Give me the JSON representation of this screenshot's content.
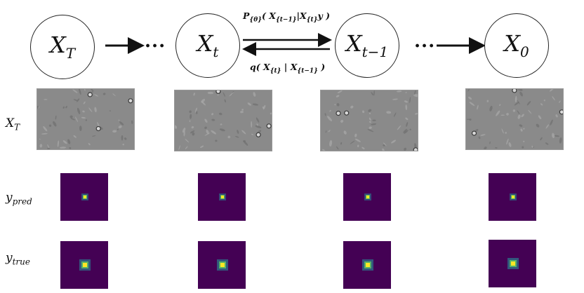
{
  "diagram": {
    "nodes": [
      {
        "id": "XT",
        "base": "X",
        "sub": "T"
      },
      {
        "id": "Xt",
        "base": "X",
        "sub": "t"
      },
      {
        "id": "Xt1",
        "base": "X",
        "sub": "t−1"
      },
      {
        "id": "X0",
        "base": "X",
        "sub": "0"
      }
    ],
    "ellipsis_left": "...",
    "ellipsis_right": "...",
    "forward_label": {
      "p": "P",
      "theta": "{θ}",
      "body": "( X",
      "s1": "{t−1}",
      "mid": "|X",
      "s2": "{t}",
      "tail": "y )"
    },
    "reverse_label": {
      "q": "q",
      "body": "( X",
      "s1": "{t}",
      "mid": " | X",
      "s2": "{t−1}",
      "tail": " )"
    }
  },
  "rows": {
    "input": {
      "base": "X",
      "sub": "T"
    },
    "pred": {
      "base": "y",
      "sub": "pred"
    },
    "true": {
      "base": "y",
      "sub": "true"
    }
  },
  "colors": {
    "heatmap_background": "#440154",
    "heatmap_mid": "#2b7c8e",
    "heatmap_high": "#5ec962",
    "heatmap_peak": "#fde725",
    "microscopy_gray": "#8a8a8a"
  }
}
